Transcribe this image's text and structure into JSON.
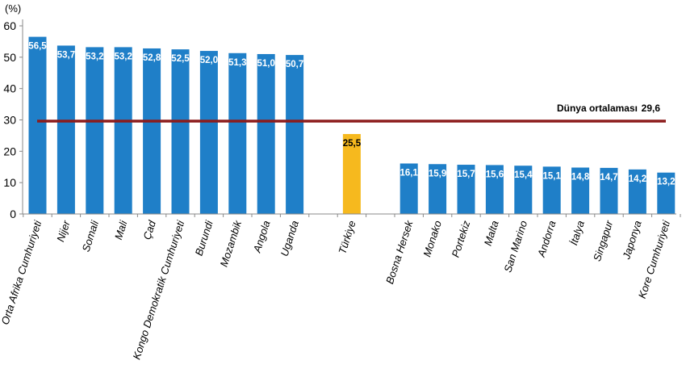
{
  "chart_data": {
    "type": "bar",
    "unit_label": "(%)",
    "ylim": [
      0,
      60
    ],
    "yticks": [
      "0",
      "10",
      "20",
      "30",
      "40",
      "50",
      "60"
    ],
    "grid": false,
    "categories": [
      "Orta Afrika Cumhuriyeti",
      "Nijer",
      "Somali",
      "Mali",
      "Çad",
      "Kongo Demokratik Cumhuriyeti",
      "Burundi",
      "Mozambik",
      "Angola",
      "Uganda",
      "Türkiye",
      "Bosna Hersek",
      "Monako",
      "Portekiz",
      "Malta",
      "San Marino",
      "Andorra",
      "İtalya",
      "Singapur",
      "Japonya",
      "Kore Cumhuriyeti"
    ],
    "values": [
      56.5,
      53.7,
      53.2,
      53.2,
      52.8,
      52.5,
      52.0,
      51.3,
      51.0,
      50.7,
      25.5,
      16.1,
      15.9,
      15.7,
      15.6,
      15.4,
      15.1,
      14.8,
      14.7,
      14.2,
      13.2
    ],
    "value_labels": [
      "56,5",
      "53,7",
      "53,2",
      "53,2",
      "52,8",
      "52,5",
      "52,0",
      "51,3",
      "51,0",
      "50,7",
      "25,5",
      "16,1",
      "15,9",
      "15,7",
      "15,6",
      "15,4",
      "15,1",
      "14,8",
      "14,7",
      "14,2",
      "13,2"
    ],
    "highlight_category": "Türkiye",
    "reference_line": {
      "label": "Dünya ortalaması",
      "value": 29.6,
      "value_label": "29,6"
    },
    "colors": {
      "bar": "#1f7fc8",
      "highlight": "#f6b91e",
      "reference_line": "#8c1c1c",
      "value_text": "#ffffff",
      "highlight_value_text": "#000000",
      "axis": "#888888"
    }
  }
}
